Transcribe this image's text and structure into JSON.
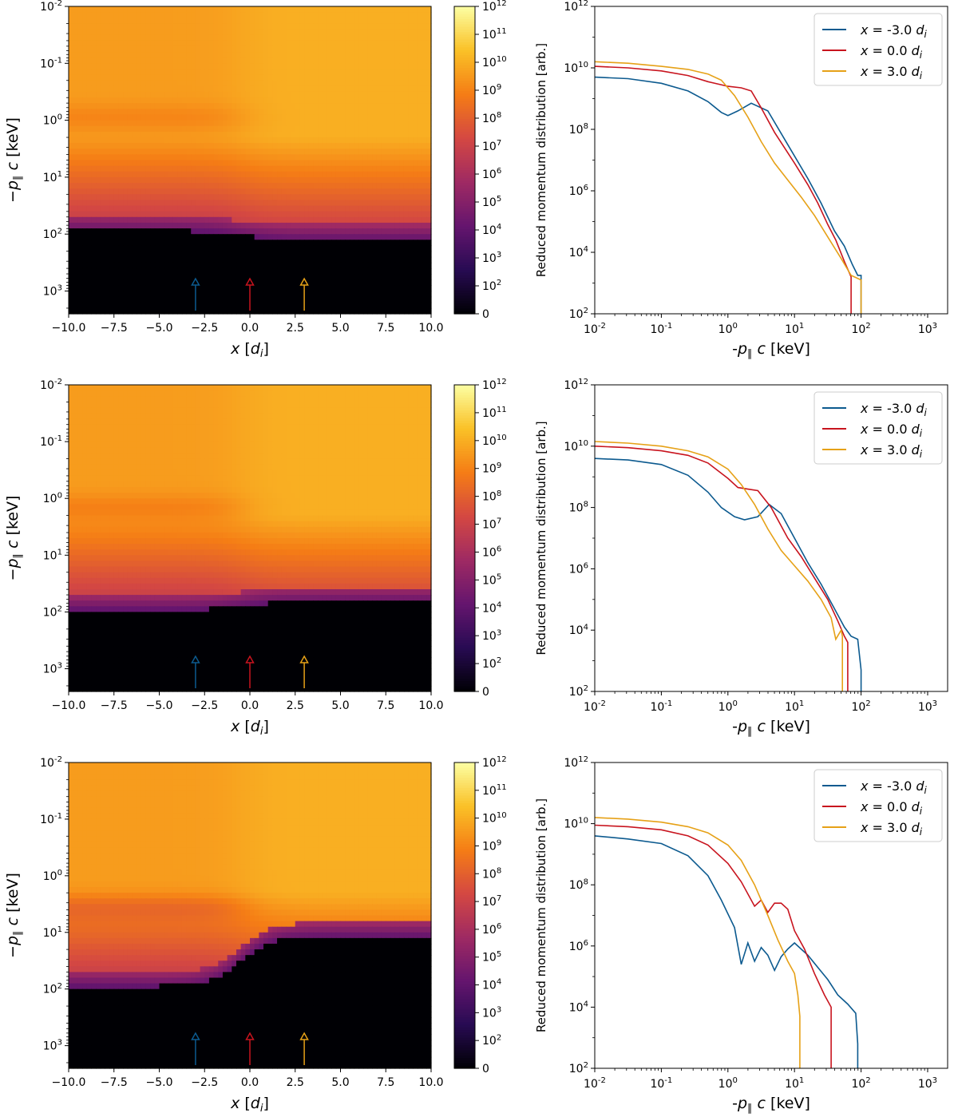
{
  "colors": {
    "series": [
      "#0c5a8f",
      "#c8141e",
      "#e6a117"
    ],
    "colormap": [
      "#000004",
      "#280b53",
      "#65156e",
      "#9f2a63",
      "#d44842",
      "#f57d15",
      "#fac127",
      "#fcffa4"
    ]
  },
  "chart_data": [
    {
      "type": "heatmap",
      "panel": "row-1-left",
      "xlabel": "x [d_i]",
      "ylabel": "−p∥c [keV]",
      "xlim": [
        -10.0,
        10.0
      ],
      "ylim_log": [
        -2,
        3.4
      ],
      "y_inverted": true,
      "xticks": [
        "−10.0",
        "−7.5",
        "−5.0",
        "−2.5",
        "0.0",
        "2.5",
        "5.0",
        "7.5",
        "10.0"
      ],
      "yticks": [
        "10^-2",
        "10^-1",
        "10^0",
        "10^1",
        "10^2",
        "10^3"
      ],
      "colorbar_ticks": [
        "0",
        "10^2",
        "10^3",
        "10^4",
        "10^5",
        "10^6",
        "10^7",
        "10^8",
        "10^9",
        "10^10",
        "10^11",
        "10^12"
      ],
      "markers_x": [
        -3.0,
        0.0,
        3.0
      ],
      "cutoff_left": 88,
      "cutoff_right": 125,
      "feature_left_p": 0.9,
      "feature_strength": 0.6
    },
    {
      "type": "line",
      "panel": "row-1-right",
      "xlabel": "-p∥c [keV]",
      "ylabel": "Reduced momentum distribution [arb.]",
      "x_log_range": [
        -2,
        3.3
      ],
      "y_log_range": [
        2,
        12
      ],
      "xticks": [
        "10^-2",
        "10^-1",
        "10^0",
        "10^1",
        "10^2",
        "10^3"
      ],
      "yticks": [
        "10^2",
        "10^4",
        "10^6",
        "10^8",
        "10^10",
        "10^12"
      ],
      "legend_position": "top-right",
      "series": [
        {
          "name": "x = -3.0 d_i",
          "log_p": [
            -2,
            -1.5,
            -1,
            -0.6,
            -0.3,
            -0.1,
            0,
            0.15,
            0.35,
            0.6,
            0.9,
            1.2,
            1.4,
            1.6,
            1.75,
            1.87,
            1.95,
            2.0,
            2.0
          ],
          "log_f": [
            9.7,
            9.65,
            9.5,
            9.25,
            8.9,
            8.55,
            8.45,
            8.6,
            8.85,
            8.6,
            7.5,
            6.4,
            5.6,
            4.7,
            4.2,
            3.6,
            3.25,
            3.25,
            2
          ]
        },
        {
          "name": "x = 0.0 d_i",
          "log_p": [
            -2,
            -1.5,
            -1,
            -0.6,
            -0.3,
            0,
            0.2,
            0.35,
            0.5,
            0.7,
            1.0,
            1.2,
            1.35,
            1.5,
            1.62,
            1.75,
            1.85,
            1.85
          ],
          "log_f": [
            10.05,
            10.0,
            9.9,
            9.75,
            9.55,
            9.4,
            9.35,
            9.25,
            8.7,
            7.9,
            6.9,
            6.2,
            5.6,
            4.9,
            4.4,
            3.7,
            3.2,
            2
          ]
        },
        {
          "name": "x = 3.0 d_i",
          "log_p": [
            -2,
            -1.5,
            -1,
            -0.6,
            -0.3,
            -0.1,
            0.1,
            0.3,
            0.5,
            0.7,
            0.9,
            1.1,
            1.3,
            1.5,
            1.7,
            1.85,
            2.0,
            2.0
          ],
          "log_f": [
            10.2,
            10.15,
            10.05,
            9.95,
            9.8,
            9.6,
            9.1,
            8.4,
            7.6,
            6.9,
            6.35,
            5.8,
            5.2,
            4.5,
            3.8,
            3.25,
            3.1,
            2
          ]
        }
      ]
    },
    {
      "type": "heatmap",
      "panel": "row-2-left",
      "xlabel": "x [d_i]",
      "ylabel": "−p∥c [keV]",
      "xlim": [
        -10.0,
        10.0
      ],
      "ylim_log": [
        -2,
        3.4
      ],
      "y_inverted": true,
      "xticks": [
        "−10.0",
        "−7.5",
        "−5.0",
        "−2.5",
        "0.0",
        "2.5",
        "5.0",
        "7.5",
        "10.0"
      ],
      "yticks": [
        "10^-2",
        "10^-1",
        "10^0",
        "10^1",
        "10^2",
        "10^3"
      ],
      "colorbar_ticks": [
        "0",
        "10^2",
        "10^3",
        "10^4",
        "10^5",
        "10^6",
        "10^7",
        "10^8",
        "10^9",
        "10^10",
        "10^11",
        "10^12"
      ],
      "markers_x": [
        -3.0,
        0.0,
        3.0
      ],
      "cutoff_left": 92,
      "cutoff_right": 68,
      "feature_left_p": 1.5,
      "feature_strength": 0.75
    },
    {
      "type": "line",
      "panel": "row-2-right",
      "xlabel": "-p∥c [keV]",
      "ylabel": "Reduced momentum distribution [arb.]",
      "x_log_range": [
        -2,
        3.3
      ],
      "y_log_range": [
        2,
        12
      ],
      "xticks": [
        "10^-2",
        "10^-1",
        "10^0",
        "10^1",
        "10^2",
        "10^3"
      ],
      "yticks": [
        "10^2",
        "10^4",
        "10^6",
        "10^8",
        "10^10",
        "10^12"
      ],
      "legend_position": "top-right",
      "series": [
        {
          "name": "x = -3.0 d_i",
          "log_p": [
            -2,
            -1.5,
            -1,
            -0.6,
            -0.3,
            -0.1,
            0.1,
            0.25,
            0.45,
            0.62,
            0.8,
            1.0,
            1.2,
            1.4,
            1.6,
            1.75,
            1.85,
            1.95,
            2.0,
            2.0
          ],
          "log_f": [
            9.6,
            9.55,
            9.4,
            9.05,
            8.5,
            8.0,
            7.7,
            7.6,
            7.7,
            8.1,
            7.8,
            7.0,
            6.2,
            5.5,
            4.7,
            4.1,
            3.8,
            3.7,
            2.7,
            2
          ]
        },
        {
          "name": "x = 0.0 d_i",
          "log_p": [
            -2,
            -1.5,
            -1,
            -0.6,
            -0.3,
            0,
            0.15,
            0.3,
            0.45,
            0.65,
            0.9,
            1.1,
            1.3,
            1.5,
            1.65,
            1.75,
            1.8,
            1.8
          ],
          "log_f": [
            10.0,
            9.95,
            9.85,
            9.7,
            9.45,
            8.95,
            8.65,
            8.6,
            8.55,
            8.0,
            7.0,
            6.4,
            5.7,
            5.0,
            4.3,
            3.8,
            3.6,
            2
          ]
        },
        {
          "name": "x = 3.0 d_i",
          "log_p": [
            -2,
            -1.5,
            -1,
            -0.6,
            -0.3,
            0,
            0.2,
            0.4,
            0.6,
            0.8,
            1.0,
            1.2,
            1.4,
            1.55,
            1.62,
            1.7,
            1.72,
            1.72
          ],
          "log_f": [
            10.15,
            10.1,
            10.0,
            9.85,
            9.65,
            9.25,
            8.75,
            8.1,
            7.3,
            6.6,
            6.1,
            5.6,
            5.0,
            4.4,
            3.7,
            4.0,
            3.8,
            2
          ]
        }
      ]
    },
    {
      "type": "heatmap",
      "panel": "row-3-left",
      "xlabel": "x [d_i]",
      "ylabel": "−p∥c [keV]",
      "xlim": [
        -10.0,
        10.0
      ],
      "ylim_log": [
        -2,
        3.4
      ],
      "y_inverted": true,
      "xticks": [
        "−10.0",
        "−7.5",
        "−5.0",
        "−2.5",
        "0.0",
        "2.5",
        "5.0",
        "7.5",
        "10.0"
      ],
      "yticks": [
        "10^-2",
        "10^-1",
        "10^0",
        "10^1",
        "10^2",
        "10^3"
      ],
      "colorbar_ticks": [
        "0",
        "10^2",
        "10^3",
        "10^4",
        "10^5",
        "10^6",
        "10^7",
        "10^8",
        "10^9",
        "10^10",
        "10^11",
        "10^12"
      ],
      "markers_x": [
        -3.0,
        0.0,
        3.0
      ],
      "cutoff_left": 90,
      "cutoff_right": 12,
      "feature_left_p": 3.5,
      "feature_strength": 1.0
    },
    {
      "type": "line",
      "panel": "row-3-right",
      "xlabel": "-p∥c [keV]",
      "ylabel": "Reduced momentum distribution [arb.]",
      "x_log_range": [
        -2,
        3.3
      ],
      "y_log_range": [
        2,
        12
      ],
      "xticks": [
        "10^-2",
        "10^-1",
        "10^0",
        "10^1",
        "10^2",
        "10^3"
      ],
      "yticks": [
        "10^2",
        "10^4",
        "10^6",
        "10^8",
        "10^10",
        "10^12"
      ],
      "legend_position": "top-right",
      "series": [
        {
          "name": "x = -3.0 d_i",
          "log_p": [
            -2,
            -1.5,
            -1,
            -0.6,
            -0.3,
            -0.1,
            0.1,
            0.2,
            0.3,
            0.4,
            0.5,
            0.6,
            0.7,
            0.8,
            0.9,
            1.0,
            1.1,
            1.2,
            1.35,
            1.5,
            1.65,
            1.8,
            1.92,
            1.95,
            1.95
          ],
          "log_f": [
            9.6,
            9.5,
            9.35,
            8.95,
            8.3,
            7.5,
            6.6,
            5.4,
            6.1,
            5.5,
            5.95,
            5.7,
            5.2,
            5.65,
            5.9,
            6.1,
            5.9,
            5.7,
            5.3,
            4.9,
            4.4,
            4.1,
            3.8,
            2.8,
            2
          ]
        },
        {
          "name": "x = 0.0 d_i",
          "log_p": [
            -2,
            -1.5,
            -1,
            -0.6,
            -0.3,
            0,
            0.2,
            0.4,
            0.5,
            0.6,
            0.7,
            0.8,
            0.9,
            1.0,
            1.15,
            1.3,
            1.45,
            1.55,
            1.55
          ],
          "log_f": [
            9.95,
            9.9,
            9.8,
            9.6,
            9.3,
            8.7,
            8.1,
            7.3,
            7.5,
            7.1,
            7.4,
            7.4,
            7.2,
            6.5,
            5.9,
            5.1,
            4.4,
            4.0,
            2
          ]
        },
        {
          "name": "x = 3.0 d_i",
          "log_p": [
            -2,
            -1.5,
            -1,
            -0.6,
            -0.3,
            0,
            0.2,
            0.4,
            0.6,
            0.75,
            0.9,
            1.0,
            1.05,
            1.08,
            1.08
          ],
          "log_f": [
            10.2,
            10.15,
            10.05,
            9.9,
            9.7,
            9.3,
            8.8,
            8.0,
            7.0,
            6.2,
            5.5,
            5.1,
            4.4,
            3.7,
            2
          ]
        }
      ]
    }
  ]
}
